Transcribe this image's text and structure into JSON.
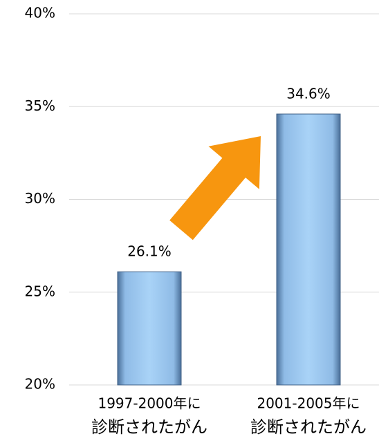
{
  "chart_data": {
    "type": "bar",
    "categories": [
      [
        "1997-2000年に",
        "診断されたがん"
      ],
      [
        "2001-2005年に",
        "診断されたがん"
      ]
    ],
    "values": [
      26.1,
      34.6
    ],
    "value_labels": [
      "26.1%",
      "34.6%"
    ],
    "color": "#9cc8f0",
    "ylim": [
      20,
      40
    ],
    "yticks": [
      {
        "value": 20,
        "label": "20%"
      },
      {
        "value": 25,
        "label": "25%"
      },
      {
        "value": 30,
        "label": "30%"
      },
      {
        "value": 35,
        "label": "35%"
      },
      {
        "value": 40,
        "label": "40%"
      }
    ],
    "grid": true
  }
}
